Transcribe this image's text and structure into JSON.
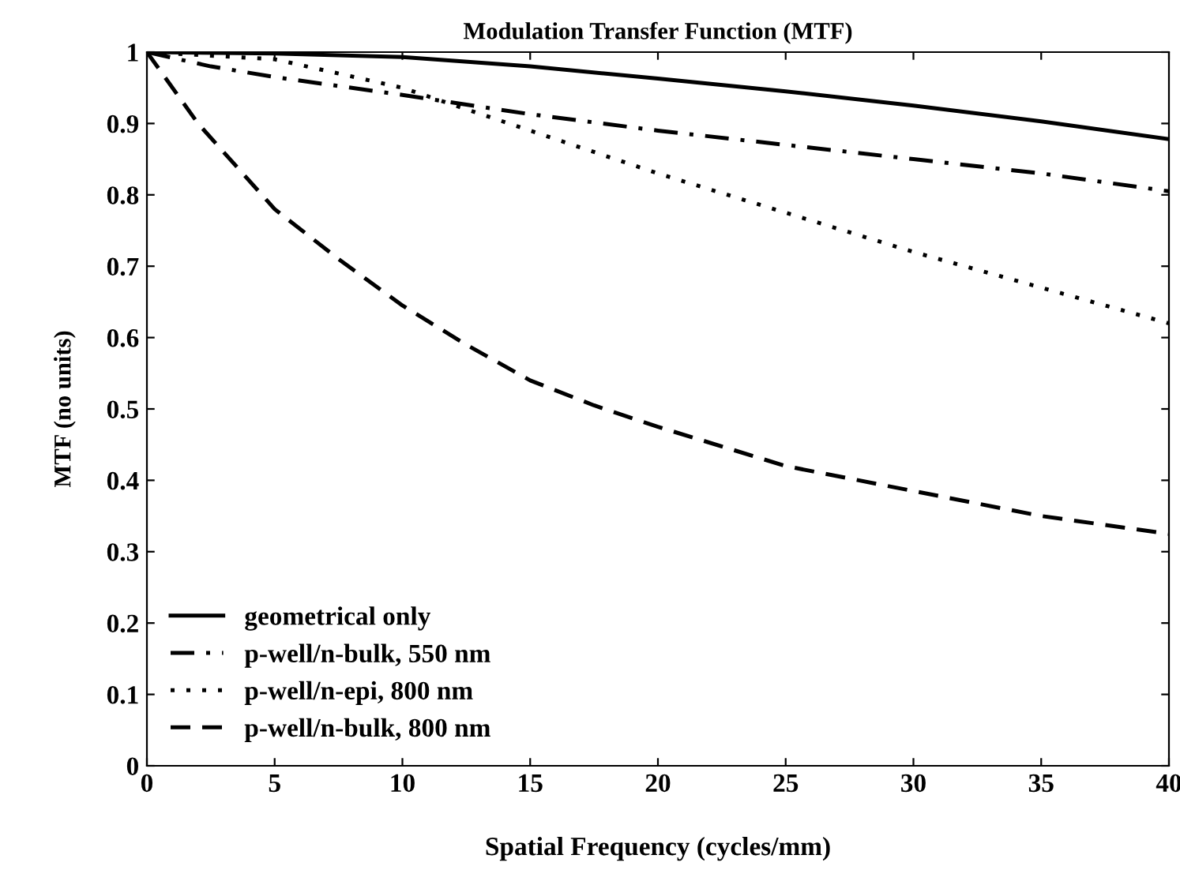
{
  "chart_data": {
    "type": "line",
    "title": "Modulation Transfer Function (MTF)",
    "xlabel": "Spatial Frequency (cycles/mm)",
    "ylabel": "MTF (no units)",
    "xlim": [
      0,
      40
    ],
    "ylim": [
      0,
      1
    ],
    "xticks": [
      0,
      5,
      10,
      15,
      20,
      25,
      30,
      35,
      40
    ],
    "yticks": [
      0,
      0.1,
      0.2,
      0.3,
      0.4,
      0.5,
      0.6,
      0.7,
      0.8,
      0.9,
      1
    ],
    "grid": false,
    "legend": "bottom left",
    "series": [
      {
        "name": "geometrical only",
        "color": "#000000",
        "line_style": "solid",
        "x": [
          0,
          5,
          10,
          15,
          20,
          25,
          30,
          35,
          40
        ],
        "values": [
          1,
          0.998,
          0.993,
          0.98,
          0.963,
          0.945,
          0.925,
          0.903,
          0.878
        ]
      },
      {
        "name": "p-well/n-bulk, 550 nm",
        "color": "#000000",
        "line_style": "dashdot",
        "x": [
          0,
          2.5,
          5,
          10,
          15,
          20,
          25,
          30,
          35,
          40
        ],
        "values": [
          1,
          0.98,
          0.965,
          0.94,
          0.913,
          0.89,
          0.87,
          0.85,
          0.83,
          0.805
        ]
      },
      {
        "name": "p-well/n-epi, 800 nm",
        "color": "#000000",
        "line_style": "dotted",
        "x": [
          0,
          5,
          10,
          15,
          20,
          25,
          30,
          35,
          40
        ],
        "values": [
          1,
          0.99,
          0.95,
          0.89,
          0.83,
          0.775,
          0.72,
          0.67,
          0.62
        ]
      },
      {
        "name": "p-well/n-bulk, 800 nm",
        "color": "#000000",
        "line_style": "dashed",
        "x": [
          0,
          2,
          5,
          7.5,
          10,
          12.5,
          15,
          17.5,
          20,
          25,
          30,
          35,
          40
        ],
        "values": [
          1,
          0.9,
          0.78,
          0.71,
          0.645,
          0.59,
          0.54,
          0.505,
          0.475,
          0.42,
          0.385,
          0.35,
          0.325
        ]
      }
    ]
  }
}
